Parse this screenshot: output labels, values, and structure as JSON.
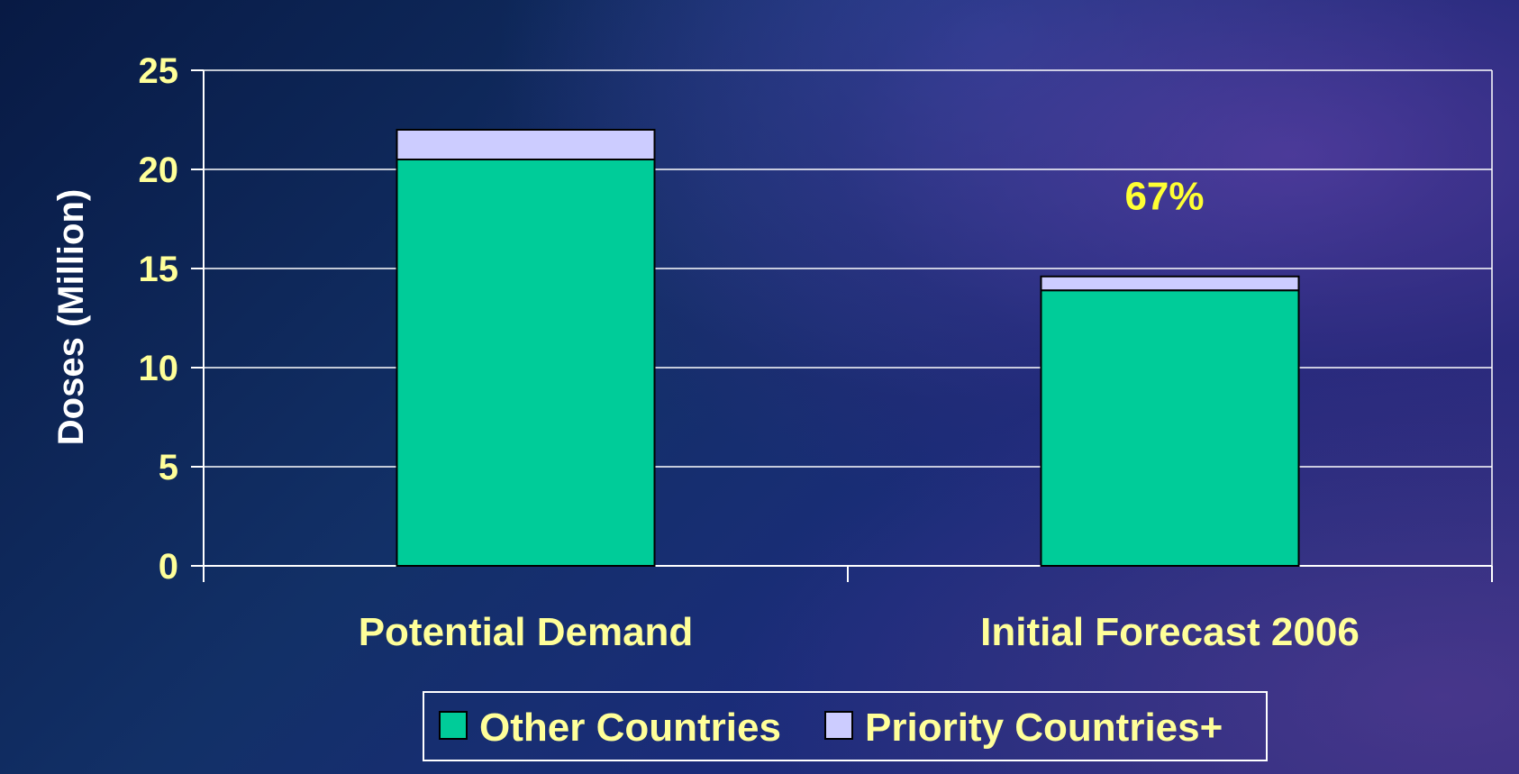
{
  "chart_data": {
    "type": "bar",
    "stacked": true,
    "categories": [
      "Potential Demand",
      "Initial Forecast 2006"
    ],
    "series": [
      {
        "name": "Other Countries",
        "values": [
          20.5,
          13.9
        ],
        "color": "#00cc99"
      },
      {
        "name": "Priority Countries+",
        "values": [
          1.5,
          0.7
        ],
        "color": "#ccccff"
      }
    ],
    "ylabel": "Doses (Million)",
    "xlabel": "",
    "ylim": [
      0,
      25
    ],
    "yticks": [
      0,
      5,
      10,
      15,
      20,
      25
    ],
    "grid": true,
    "legend_position": "bottom",
    "annotations": [
      {
        "text": "67%",
        "category": "Initial Forecast 2006",
        "y": 18.7
      }
    ],
    "colors": {
      "text": "#ffff99",
      "grid": "#ffffff",
      "annotation": "#ffff33"
    }
  }
}
